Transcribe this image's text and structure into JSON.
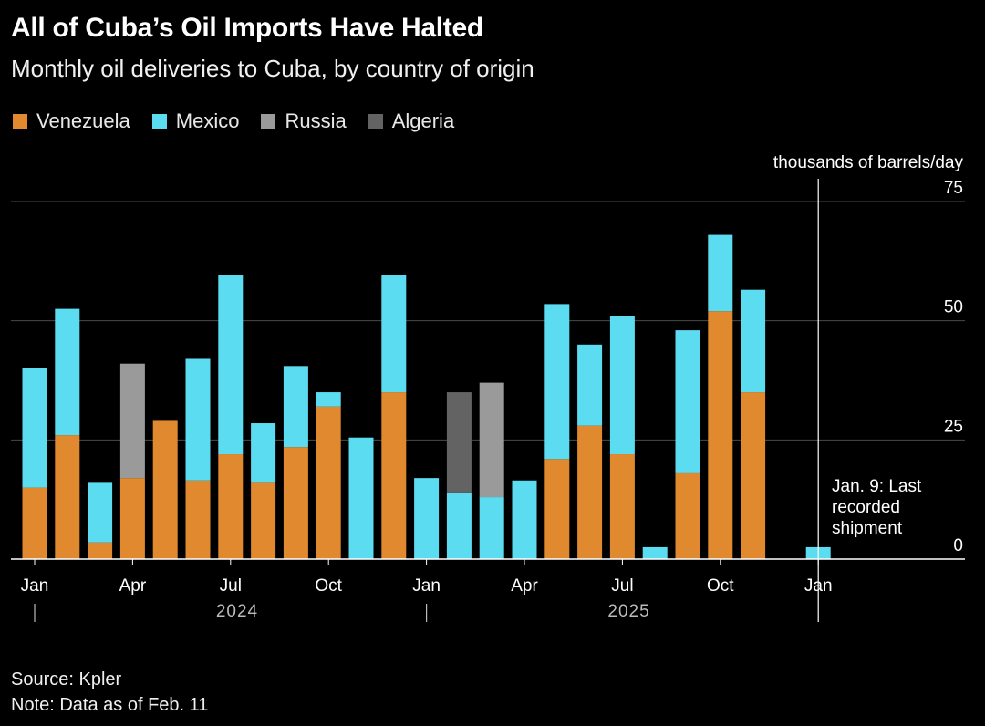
{
  "header": {
    "title": "All of Cuba’s Oil Imports Have Halted",
    "subtitle": "Monthly oil deliveries to Cuba, by country of origin"
  },
  "colors": {
    "Venezuela": "#e0892e",
    "Mexico": "#5bdcf0",
    "Russia": "#9a9a9a",
    "Algeria": "#636363",
    "background": "#000000",
    "grid": "#4a4a4a"
  },
  "chart_data": {
    "type": "bar",
    "stacked": true,
    "title": "All of Cuba’s Oil Imports Have Halted",
    "subtitle": "Monthly oil deliveries to Cuba, by country of origin",
    "ylabel": "thousands of barrels/day",
    "ylim": [
      0,
      75
    ],
    "yticks": [
      0,
      25,
      50,
      75
    ],
    "legend": [
      "Venezuela",
      "Mexico",
      "Russia",
      "Algeria"
    ],
    "categories": [
      "Jan 2024",
      "Feb 2024",
      "Mar 2024",
      "Apr 2024",
      "May 2024",
      "Jun 2024",
      "Jul 2024",
      "Aug 2024",
      "Sep 2024",
      "Oct 2024",
      "Nov 2024",
      "Dec 2024",
      "Jan 2025",
      "Feb 2025",
      "Mar 2025",
      "Apr 2025",
      "May 2025",
      "Jun 2025",
      "Jul 2025",
      "Aug 2025",
      "Sep 2025",
      "Oct 2025",
      "Nov 2025",
      "Dec 2025",
      "Jan 2026"
    ],
    "series": [
      {
        "name": "Venezuela",
        "values": [
          15,
          26,
          3.5,
          17,
          29,
          16.5,
          22,
          16,
          23.5,
          32,
          0,
          35,
          0,
          0,
          0,
          0,
          21,
          28,
          22,
          0,
          18,
          52,
          35,
          0,
          0
        ]
      },
      {
        "name": "Mexico",
        "values": [
          25,
          26.5,
          12.5,
          0,
          0,
          25.5,
          37.5,
          12.5,
          17,
          3,
          25.5,
          24.5,
          17,
          14,
          13,
          16.5,
          32.5,
          17,
          29,
          2.5,
          30,
          16,
          21.5,
          0,
          2.5
        ]
      },
      {
        "name": "Russia",
        "values": [
          0,
          0,
          0,
          24,
          0,
          0,
          0,
          0,
          0,
          0,
          0,
          0,
          0,
          0,
          24,
          0,
          0,
          0,
          0,
          0,
          0,
          0,
          0,
          0,
          0
        ]
      },
      {
        "name": "Algeria",
        "values": [
          0,
          0,
          0,
          0,
          0,
          0,
          0,
          0,
          0,
          0,
          0,
          0,
          0,
          21,
          0,
          0,
          0,
          0,
          0,
          0,
          0,
          0,
          0,
          0,
          0
        ]
      }
    ],
    "x_tick_labels": [
      {
        "index": 0,
        "label": "Jan"
      },
      {
        "index": 3,
        "label": "Apr"
      },
      {
        "index": 6,
        "label": "Jul"
      },
      {
        "index": 9,
        "label": "Oct"
      },
      {
        "index": 12,
        "label": "Jan"
      },
      {
        "index": 15,
        "label": "Apr"
      },
      {
        "index": 18,
        "label": "Jul"
      },
      {
        "index": 21,
        "label": "Oct"
      },
      {
        "index": 24,
        "label": "Jan"
      }
    ],
    "year_labels": [
      {
        "start_index": 0,
        "label": "2024"
      },
      {
        "start_index": 12,
        "label": "2025"
      }
    ],
    "annotation": {
      "index": 24,
      "text": [
        "Jan. 9: Last",
        "recorded",
        "shipment"
      ]
    }
  },
  "footer": {
    "source": "Source: Kpler",
    "note": "Note: Data as of Feb. 11"
  }
}
